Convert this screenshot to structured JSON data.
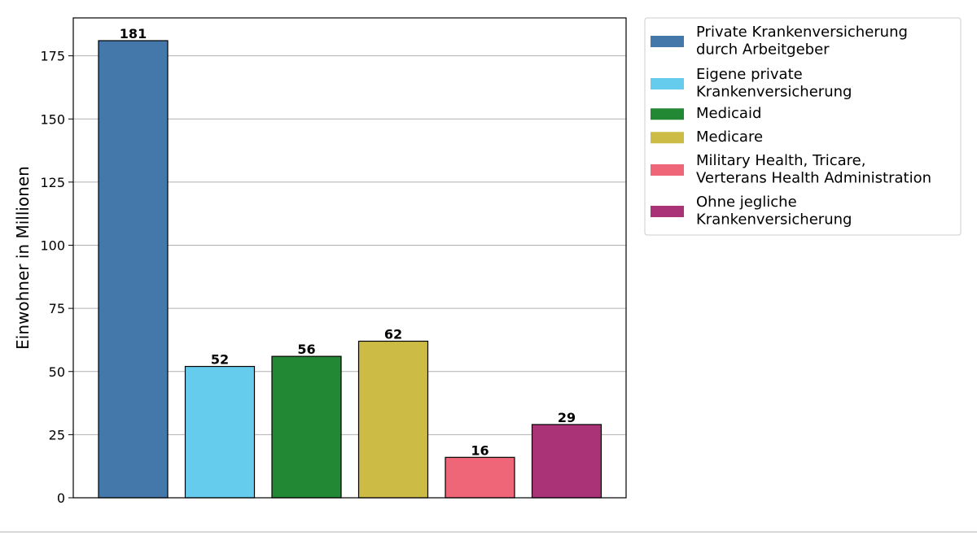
{
  "chart_data": {
    "type": "bar",
    "categories": [
      "Private Krankenversicherung durch Arbeitgeber",
      "Eigene private Krankenversicherung",
      "Medicaid",
      "Medicare",
      "Military Health, Tricare, Verterans Health Administration",
      "Ohne jegliche Krankenversicherung"
    ],
    "values": [
      181,
      52,
      56,
      62,
      16,
      29
    ],
    "value_labels": [
      "181",
      "52",
      "56",
      "62",
      "16",
      "29"
    ],
    "colors": [
      "#4477aa",
      "#66ccee",
      "#228833",
      "#ccbb44",
      "#ee6677",
      "#aa3377"
    ],
    "ylabel": "Einwohner in Millionen",
    "xlabel": "",
    "ylim": [
      0,
      190
    ],
    "yticks": [
      0,
      25,
      50,
      75,
      100,
      125,
      150,
      175
    ],
    "grid": "horizontal",
    "legend": {
      "placement": "outside-right-top",
      "entries": [
        {
          "lines": [
            "Private Krankenversicherung",
            "durch Arbeitgeber"
          ],
          "color": "#4477aa"
        },
        {
          "lines": [
            "Eigene private",
            "Krankenversicherung"
          ],
          "color": "#66ccee"
        },
        {
          "lines": [
            "Medicaid"
          ],
          "color": "#228833"
        },
        {
          "lines": [
            "Medicare"
          ],
          "color": "#ccbb44"
        },
        {
          "lines": [
            "Military Health, Tricare,",
            "Verterans Health Administration"
          ],
          "color": "#ee6677"
        },
        {
          "lines": [
            "Ohne jegliche",
            "Krankenversicherung"
          ],
          "color": "#aa3377"
        }
      ]
    }
  }
}
